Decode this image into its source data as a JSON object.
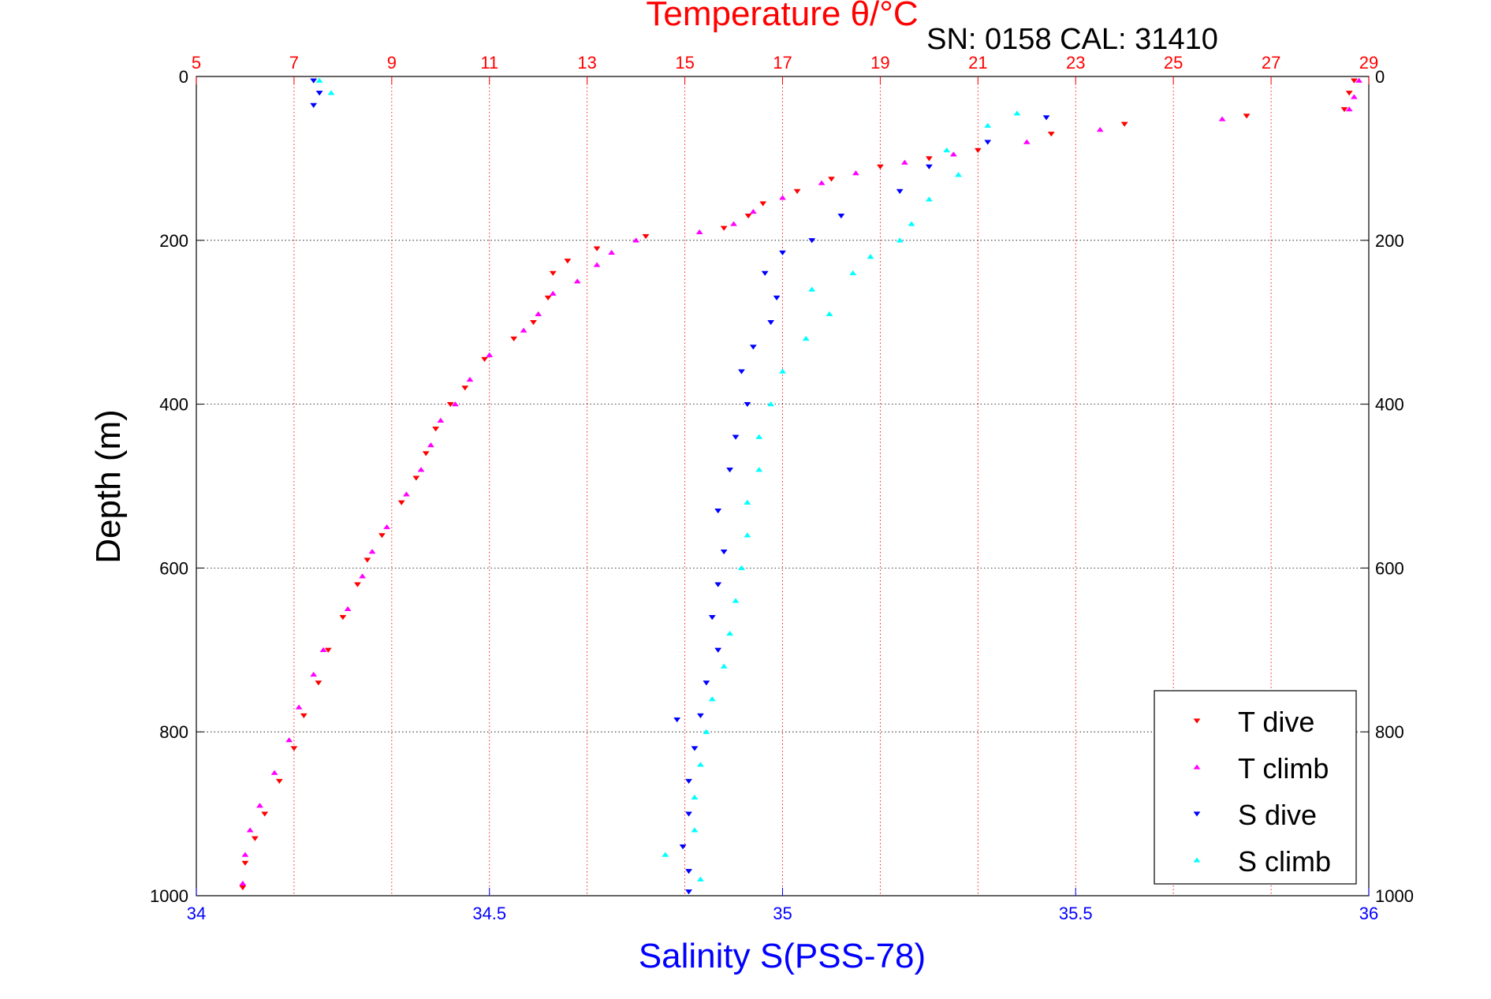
{
  "chart_data": {
    "type": "scatter",
    "title": "Temperature θ/°C",
    "subtitle": "SN: 0158  CAL: 31410",
    "ylabel": "Depth (m)",
    "xlabel_bottom": "Salinity S(PSS-78)",
    "xlabel_top": "Temperature θ/°C",
    "ylim": [
      0,
      1000
    ],
    "y_reversed": true,
    "yticks": [
      0,
      200,
      400,
      600,
      800,
      1000
    ],
    "x_bottom": {
      "lim": [
        34,
        36
      ],
      "ticks": [
        34,
        34.5,
        35,
        35.5,
        36
      ],
      "tick_labels": [
        "34",
        "34.5",
        "35",
        "35.5",
        "36"
      ],
      "color": "#0000ff"
    },
    "x_top": {
      "lim": [
        5,
        29
      ],
      "ticks": [
        5,
        7,
        9,
        11,
        13,
        15,
        17,
        19,
        21,
        23,
        25,
        27,
        29
      ],
      "tick_labels": [
        "5",
        "7",
        "9",
        "11",
        "13",
        "15",
        "17",
        "19",
        "21",
        "23",
        "25",
        "27",
        "29"
      ],
      "color": "#ff0000"
    },
    "grid": true,
    "legend_position": "bottom-right",
    "series": [
      {
        "name": "T dive",
        "axis": "top",
        "marker": "triangle-down",
        "color": "#ff0000",
        "points": [
          [
            28.7,
            5
          ],
          [
            28.6,
            20
          ],
          [
            28.5,
            40
          ],
          [
            26.5,
            48
          ],
          [
            24.0,
            58
          ],
          [
            22.5,
            70
          ],
          [
            21.0,
            90
          ],
          [
            20.0,
            100
          ],
          [
            19.0,
            110
          ],
          [
            18.0,
            125
          ],
          [
            17.3,
            140
          ],
          [
            16.6,
            155
          ],
          [
            16.3,
            170
          ],
          [
            15.8,
            185
          ],
          [
            14.2,
            195
          ],
          [
            13.2,
            210
          ],
          [
            12.6,
            225
          ],
          [
            12.3,
            240
          ],
          [
            12.2,
            270
          ],
          [
            11.9,
            300
          ],
          [
            11.5,
            320
          ],
          [
            10.9,
            345
          ],
          [
            10.5,
            380
          ],
          [
            10.2,
            400
          ],
          [
            9.9,
            430
          ],
          [
            9.7,
            460
          ],
          [
            9.5,
            490
          ],
          [
            9.2,
            520
          ],
          [
            8.8,
            560
          ],
          [
            8.5,
            590
          ],
          [
            8.3,
            620
          ],
          [
            8.0,
            660
          ],
          [
            7.7,
            700
          ],
          [
            7.5,
            740
          ],
          [
            7.2,
            780
          ],
          [
            7.0,
            820
          ],
          [
            6.7,
            860
          ],
          [
            6.4,
            900
          ],
          [
            6.2,
            930
          ],
          [
            6.0,
            960
          ],
          [
            5.95,
            990
          ]
        ]
      },
      {
        "name": "T climb",
        "axis": "top",
        "marker": "triangle-up",
        "color": "#ff00ff",
        "points": [
          [
            28.8,
            5
          ],
          [
            28.7,
            25
          ],
          [
            28.6,
            40
          ],
          [
            26.0,
            52
          ],
          [
            23.5,
            65
          ],
          [
            22.0,
            80
          ],
          [
            20.5,
            95
          ],
          [
            19.5,
            105
          ],
          [
            18.5,
            118
          ],
          [
            17.8,
            130
          ],
          [
            17.0,
            148
          ],
          [
            16.4,
            165
          ],
          [
            16.0,
            180
          ],
          [
            15.3,
            190
          ],
          [
            14.0,
            200
          ],
          [
            13.5,
            215
          ],
          [
            13.2,
            230
          ],
          [
            12.8,
            250
          ],
          [
            12.3,
            265
          ],
          [
            12.0,
            290
          ],
          [
            11.7,
            310
          ],
          [
            11.0,
            340
          ],
          [
            10.6,
            370
          ],
          [
            10.3,
            400
          ],
          [
            10.0,
            420
          ],
          [
            9.8,
            450
          ],
          [
            9.6,
            480
          ],
          [
            9.3,
            510
          ],
          [
            8.9,
            550
          ],
          [
            8.6,
            580
          ],
          [
            8.4,
            610
          ],
          [
            8.1,
            650
          ],
          [
            7.6,
            700
          ],
          [
            7.4,
            730
          ],
          [
            7.1,
            770
          ],
          [
            6.9,
            810
          ],
          [
            6.6,
            850
          ],
          [
            6.3,
            890
          ],
          [
            6.1,
            920
          ],
          [
            6.0,
            950
          ],
          [
            5.95,
            985
          ]
        ]
      },
      {
        "name": "S dive",
        "axis": "bottom",
        "marker": "triangle-down",
        "color": "#0000ff",
        "points": [
          [
            34.2,
            5
          ],
          [
            34.21,
            20
          ],
          [
            34.2,
            35
          ],
          [
            35.45,
            50
          ],
          [
            35.35,
            80
          ],
          [
            35.25,
            110
          ],
          [
            35.2,
            140
          ],
          [
            35.1,
            170
          ],
          [
            35.05,
            200
          ],
          [
            35.0,
            215
          ],
          [
            34.97,
            240
          ],
          [
            34.99,
            270
          ],
          [
            34.98,
            300
          ],
          [
            34.95,
            330
          ],
          [
            34.93,
            360
          ],
          [
            34.94,
            400
          ],
          [
            34.92,
            440
          ],
          [
            34.91,
            480
          ],
          [
            34.89,
            530
          ],
          [
            34.9,
            580
          ],
          [
            34.89,
            620
          ],
          [
            34.88,
            660
          ],
          [
            34.89,
            700
          ],
          [
            34.87,
            740
          ],
          [
            34.86,
            780
          ],
          [
            34.85,
            820
          ],
          [
            34.84,
            860
          ],
          [
            34.84,
            900
          ],
          [
            34.83,
            940
          ],
          [
            34.84,
            970
          ],
          [
            34.84,
            995
          ],
          [
            34.82,
            785
          ]
        ]
      },
      {
        "name": "S climb",
        "axis": "bottom",
        "marker": "triangle-up",
        "color": "#00ffff",
        "points": [
          [
            34.21,
            5
          ],
          [
            34.23,
            20
          ],
          [
            35.4,
            45
          ],
          [
            35.35,
            60
          ],
          [
            35.28,
            90
          ],
          [
            35.3,
            120
          ],
          [
            35.25,
            150
          ],
          [
            35.22,
            180
          ],
          [
            35.2,
            200
          ],
          [
            35.15,
            220
          ],
          [
            35.12,
            240
          ],
          [
            35.05,
            260
          ],
          [
            35.08,
            290
          ],
          [
            35.04,
            320
          ],
          [
            35.0,
            360
          ],
          [
            34.98,
            400
          ],
          [
            34.96,
            440
          ],
          [
            34.96,
            480
          ],
          [
            34.94,
            520
          ],
          [
            34.94,
            560
          ],
          [
            34.93,
            600
          ],
          [
            34.92,
            640
          ],
          [
            34.91,
            680
          ],
          [
            34.9,
            720
          ],
          [
            34.88,
            760
          ],
          [
            34.87,
            800
          ],
          [
            34.86,
            840
          ],
          [
            34.85,
            880
          ],
          [
            34.85,
            920
          ],
          [
            34.8,
            950
          ],
          [
            34.86,
            980
          ]
        ]
      }
    ]
  }
}
